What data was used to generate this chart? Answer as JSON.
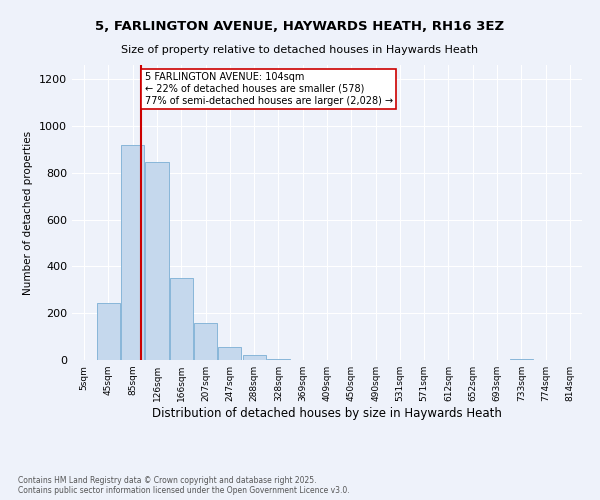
{
  "title": "5, FARLINGTON AVENUE, HAYWARDS HEATH, RH16 3EZ",
  "subtitle": "Size of property relative to detached houses in Haywards Heath",
  "xlabel": "Distribution of detached houses by size in Haywards Heath",
  "ylabel": "Number of detached properties",
  "footer_line1": "Contains HM Land Registry data © Crown copyright and database right 2025.",
  "footer_line2": "Contains public sector information licensed under the Open Government Licence v3.0.",
  "bin_labels": [
    "5sqm",
    "45sqm",
    "85sqm",
    "126sqm",
    "166sqm",
    "207sqm",
    "247sqm",
    "288sqm",
    "328sqm",
    "369sqm",
    "409sqm",
    "450sqm",
    "490sqm",
    "531sqm",
    "571sqm",
    "612sqm",
    "652sqm",
    "693sqm",
    "733sqm",
    "774sqm",
    "814sqm"
  ],
  "bar_values": [
    0,
    245,
    920,
    845,
    350,
    160,
    55,
    20,
    5,
    2,
    0,
    0,
    0,
    0,
    0,
    0,
    0,
    0,
    5,
    0,
    0
  ],
  "bar_color": "#c5d8ed",
  "bar_edge_color": "#7bafd4",
  "property_line_bin_index": 2.35,
  "vline_color": "#cc0000",
  "annotation_text": "5 FARLINGTON AVENUE: 104sqm\n← 22% of detached houses are smaller (578)\n77% of semi-detached houses are larger (2,028) →",
  "annotation_box_color": "#ffffff",
  "annotation_box_edge": "#cc0000",
  "ylim": [
    0,
    1260
  ],
  "yticks": [
    0,
    200,
    400,
    600,
    800,
    1000,
    1200
  ],
  "background_color": "#eef2fa",
  "plot_bg_color": "#eef2fa",
  "grid_color": "#ffffff"
}
